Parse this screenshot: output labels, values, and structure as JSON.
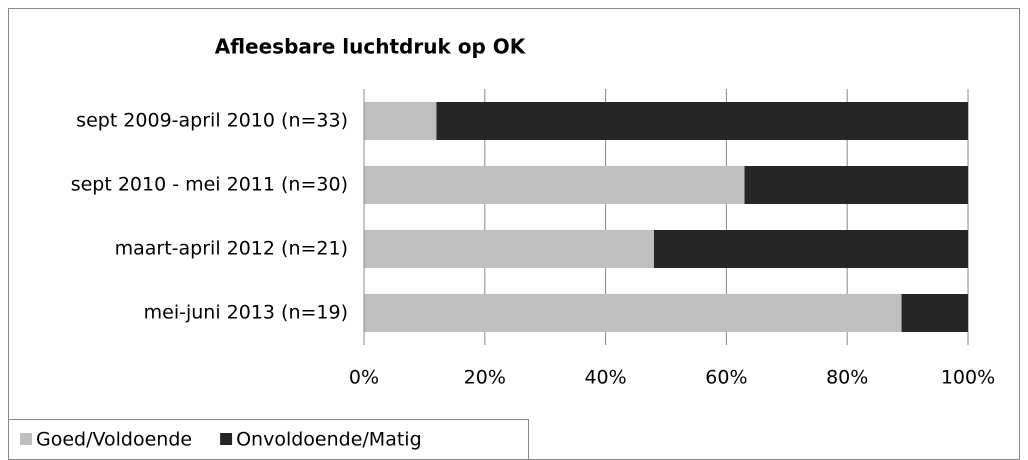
{
  "chart_data": {
    "type": "stacked_barh",
    "title": "Afleesbare luchtdruk op OK",
    "categories": [
      "sept 2009-april 2010 (n=33)",
      "sept 2010 - mei 2011 (n=30)",
      "maart-april 2012 (n=21)",
      "mei-juni 2013 (n=19)"
    ],
    "series": [
      {
        "name": "Goed/Voldoende",
        "color": "#bfbfbf",
        "values": [
          12,
          63,
          48,
          89
        ]
      },
      {
        "name": "Onvoldoende/Matig",
        "color": "#262626",
        "values": [
          88,
          37,
          52,
          11
        ]
      }
    ],
    "xlim": [
      0,
      100
    ],
    "xticks": [
      {
        "value": 0,
        "label": "0%"
      },
      {
        "value": 20,
        "label": "20%"
      },
      {
        "value": 40,
        "label": "40%"
      },
      {
        "value": 60,
        "label": "60%"
      },
      {
        "value": 80,
        "label": "80%"
      },
      {
        "value": 100,
        "label": "100%"
      }
    ],
    "grid": true
  }
}
